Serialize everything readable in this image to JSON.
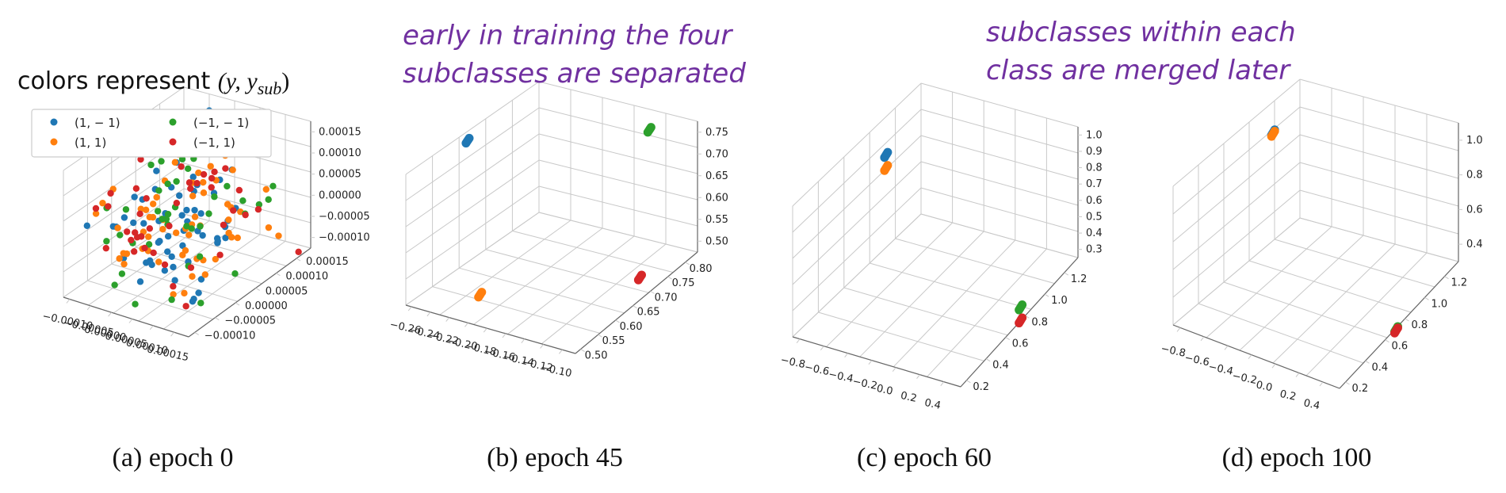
{
  "colors_label": {
    "text": "colors represent ",
    "math": "(y, y",
    "math_sub": "sub",
    "math_close": ")"
  },
  "annotations": [
    {
      "lines": [
        "early in training the four",
        "subclasses are separated"
      ]
    },
    {
      "lines": [
        "subclasses within each",
        "class are merged later"
      ]
    }
  ],
  "legend": [
    {
      "label": "(1, − 1)",
      "color": "#1f77b4"
    },
    {
      "label": "(−1, − 1)",
      "color": "#2ca02c"
    },
    {
      "label": "(1, 1)",
      "color": "#ff7f0e"
    },
    {
      "label": "(−1, 1)",
      "color": "#d62728"
    }
  ],
  "chart_data": [
    {
      "type": "scatter",
      "caption": "(a) epoch 0",
      "xticks": [
        "−0.00010",
        "−0.00005",
        "0.00000",
        "0.00005",
        "0.00010",
        "0.00015"
      ],
      "yticks": [
        "−0.00010",
        "−0.00005",
        "0.00000",
        "0.00005",
        "0.00010",
        "0.00015"
      ],
      "zticks": [
        "0.00015",
        "0.00010",
        "0.00005",
        "0.00000",
        "−0.00005",
        "−0.00010"
      ],
      "series": [
        {
          "name": "(1, − 1)",
          "color": "#1f77b4",
          "distribution": "scattered near origin",
          "count": 60
        },
        {
          "name": "(1, 1)",
          "color": "#ff7f0e",
          "distribution": "scattered near origin",
          "count": 60
        },
        {
          "name": "(−1, − 1)",
          "color": "#2ca02c",
          "distribution": "scattered near origin",
          "count": 40
        },
        {
          "name": "(−1, 1)",
          "color": "#d62728",
          "distribution": "scattered near origin",
          "count": 40
        }
      ]
    },
    {
      "type": "scatter",
      "caption": "(b) epoch 45",
      "xticks": [
        "−0.26",
        "−0.24",
        "−0.22",
        "−0.20",
        "−0.18",
        "−0.16",
        "−0.14",
        "−0.12",
        "−0.10"
      ],
      "yticks": [
        "0.50",
        "0.55",
        "0.60",
        "0.65",
        "0.70",
        "0.75",
        "0.80"
      ],
      "zticks": [
        "0.75",
        "0.70",
        "0.65",
        "0.60",
        "0.55",
        "0.50"
      ],
      "series": [
        {
          "name": "(1, − 1)",
          "color": "#1f77b4",
          "cluster": "top-left"
        },
        {
          "name": "(−1, − 1)",
          "color": "#2ca02c",
          "cluster": "top-right"
        },
        {
          "name": "(1, 1)",
          "color": "#ff7f0e",
          "cluster": "bottom-left"
        },
        {
          "name": "(−1, 1)",
          "color": "#d62728",
          "cluster": "bottom-right"
        }
      ]
    },
    {
      "type": "scatter",
      "caption": "(c) epoch 60",
      "xticks": [
        "−0.8",
        "−0.6",
        "−0.4",
        "−0.2",
        "0.0",
        "0.2",
        "0.4"
      ],
      "yticks": [
        "0.2",
        "0.4",
        "0.6",
        "0.8",
        "1.0",
        "1.2"
      ],
      "zticks": [
        "1.0",
        "0.9",
        "0.8",
        "0.7",
        "0.6",
        "0.5",
        "0.4",
        "0.3"
      ],
      "series": [
        {
          "name": "(1, − 1)",
          "color": "#1f77b4",
          "cluster": "left"
        },
        {
          "name": "(1, 1)",
          "color": "#ff7f0e",
          "cluster": "left"
        },
        {
          "name": "(−1, − 1)",
          "color": "#2ca02c",
          "cluster": "right"
        },
        {
          "name": "(−1, 1)",
          "color": "#d62728",
          "cluster": "right"
        }
      ]
    },
    {
      "type": "scatter",
      "caption": "(d) epoch 100",
      "xticks": [
        "−0.8",
        "−0.6",
        "−0.4",
        "−0.2",
        "0.0",
        "0.2",
        "0.4"
      ],
      "yticks": [
        "0.2",
        "0.4",
        "0.6",
        "0.8",
        "1.0",
        "1.2"
      ],
      "zticks": [
        "1.0",
        "0.8",
        "0.6",
        "0.4"
      ],
      "series": [
        {
          "name": "(1, − 1)",
          "color": "#1f77b4",
          "cluster": "left"
        },
        {
          "name": "(1, 1)",
          "color": "#ff7f0e",
          "cluster": "left"
        },
        {
          "name": "(−1, − 1)",
          "color": "#2ca02c",
          "cluster": "right"
        },
        {
          "name": "(−1, 1)",
          "color": "#d62728",
          "cluster": "right"
        }
      ]
    }
  ]
}
